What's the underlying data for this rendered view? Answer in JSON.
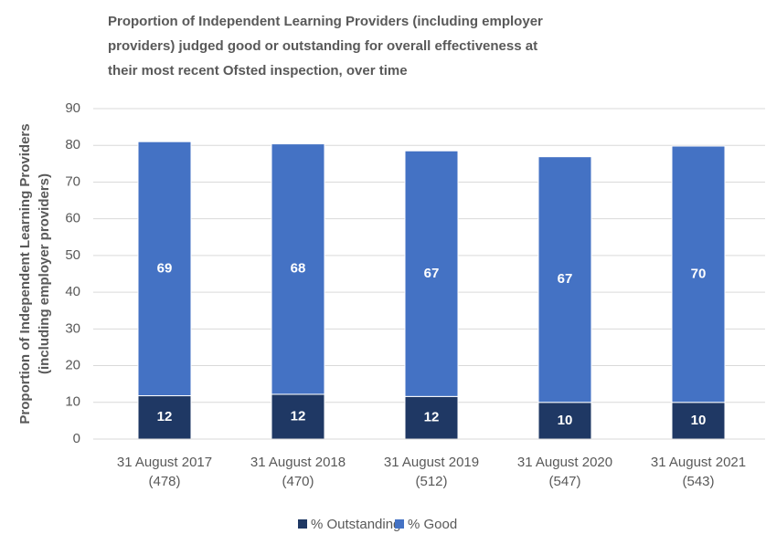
{
  "chart_data": {
    "type": "stacked_bar",
    "title": [
      "Proportion of Independent Learning Providers (including employer",
      "providers) judged good or outstanding for overall effectiveness at",
      "their most recent Ofsted inspection, over time"
    ],
    "y_label": [
      "Proportion of Independent Learning Providers",
      "(including employer providers)"
    ],
    "categories": [
      [
        "31 August 2017",
        "(478)"
      ],
      [
        "31 August 2018",
        "(470)"
      ],
      [
        "31 August 2019",
        "(512)"
      ],
      [
        "31 August 2020",
        "(547)"
      ],
      [
        "31 August 2021",
        "(543)"
      ]
    ],
    "series": [
      {
        "name": "% Outstanding",
        "color": "#1f3864",
        "values": [
          11.8,
          12.2,
          11.6,
          10,
          10
        ],
        "value_labels": [
          "12",
          "12",
          "12",
          "10",
          "10"
        ]
      },
      {
        "name": "% Good",
        "color": "#4472c4",
        "values": [
          69.2,
          68.2,
          66.9,
          66.9,
          69.8
        ],
        "value_labels": [
          "69",
          "68",
          "67",
          "67",
          "70"
        ]
      }
    ],
    "ylim": [
      0,
      90
    ],
    "yticks": [
      0,
      10,
      20,
      30,
      40,
      50,
      60,
      70,
      80,
      90
    ],
    "grid": true,
    "legend": "bottom"
  }
}
